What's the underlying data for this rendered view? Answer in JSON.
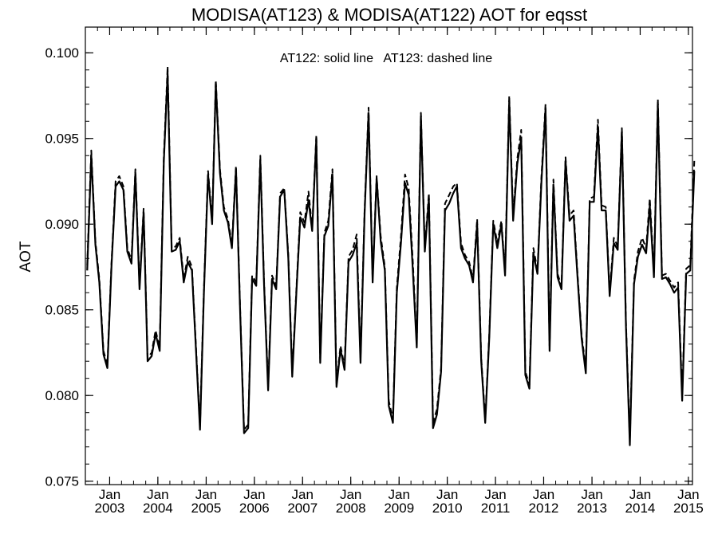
{
  "chart_data": {
    "type": "line",
    "title": "MODISA(AT123) & MODISA(AT122)  AOT for eqsst",
    "xlabel": "",
    "ylabel": "AOT",
    "annotation": "AT122: solid line   AT123: dashed line",
    "ylim": [
      0.0748,
      0.1015
    ],
    "xlim": [
      "2002-07-01",
      "2015-02-01"
    ],
    "yticks": [
      "0.075",
      "0.080",
      "0.085",
      "0.090",
      "0.095",
      "0.100"
    ],
    "xticks": [
      {
        "month": "Jan",
        "year": "2003",
        "date": "2003-01"
      },
      {
        "month": "Jan",
        "year": "2004",
        "date": "2004-01"
      },
      {
        "month": "Jan",
        "year": "2005",
        "date": "2005-01"
      },
      {
        "month": "Jan",
        "year": "2006",
        "date": "2006-01"
      },
      {
        "month": "Jan",
        "year": "2007",
        "date": "2007-01"
      },
      {
        "month": "Jan",
        "year": "2008",
        "date": "2008-01"
      },
      {
        "month": "Jan",
        "year": "2009",
        "date": "2009-01"
      },
      {
        "month": "Jan",
        "year": "2010",
        "date": "2010-01"
      },
      {
        "month": "Jan",
        "year": "2011",
        "date": "2011-01"
      },
      {
        "month": "Jan",
        "year": "2012",
        "date": "2012-01"
      },
      {
        "month": "Jan",
        "year": "2013",
        "date": "2013-01"
      },
      {
        "month": "Jan",
        "year": "2014",
        "date": "2014-01"
      },
      {
        "month": "Jan",
        "year": "2015",
        "date": "2015-01"
      }
    ],
    "grid": false,
    "legend": "none",
    "x_start": "2002-07",
    "series": [
      {
        "name": "AT122",
        "style": "solid",
        "color": "#000000",
        "values": [
          0.0873,
          0.094,
          0.0888,
          0.0866,
          0.0824,
          0.0816,
          0.0876,
          0.0922,
          0.0925,
          0.092,
          0.0884,
          0.0877,
          0.093,
          0.0862,
          0.0907,
          0.082,
          0.0823,
          0.0836,
          0.0826,
          0.0936,
          0.0988,
          0.0884,
          0.0885,
          0.089,
          0.0866,
          0.0878,
          0.0873,
          0.0828,
          0.078,
          0.086,
          0.0929,
          0.09,
          0.0982,
          0.093,
          0.0908,
          0.0901,
          0.0886,
          0.0932,
          0.0849,
          0.0778,
          0.0781,
          0.0868,
          0.0864,
          0.0937,
          0.0866,
          0.0803,
          0.0868,
          0.0862,
          0.0916,
          0.092,
          0.088,
          0.0811,
          0.086,
          0.0904,
          0.0898,
          0.0914,
          0.0896,
          0.095,
          0.0819,
          0.0893,
          0.0899,
          0.0929,
          0.0805,
          0.0827,
          0.0815,
          0.0878,
          0.0882,
          0.0889,
          0.0819,
          0.0906,
          0.0965,
          0.0866,
          0.0927,
          0.089,
          0.0873,
          0.0794,
          0.0784,
          0.086,
          0.0889,
          0.0924,
          0.0917,
          0.0873,
          0.0828,
          0.0963,
          0.0884,
          0.0915,
          0.0781,
          0.0789,
          0.0814,
          0.0908,
          0.0912,
          0.0918,
          0.0922,
          0.0886,
          0.088,
          0.0876,
          0.0866,
          0.09,
          0.082,
          0.0784,
          0.0834,
          0.09,
          0.0886,
          0.09,
          0.087,
          0.0972,
          0.0902,
          0.0935,
          0.095,
          0.0812,
          0.0804,
          0.0883,
          0.0871,
          0.0925,
          0.0967,
          0.0826,
          0.0923,
          0.0869,
          0.0862,
          0.0937,
          0.0902,
          0.0905,
          0.0867,
          0.0833,
          0.0813,
          0.0913,
          0.0913,
          0.0957,
          0.0908,
          0.0908,
          0.0858,
          0.0889,
          0.0885,
          0.0954,
          0.0841,
          0.0771,
          0.0865,
          0.0881,
          0.0888,
          0.0883,
          0.0911,
          0.0869,
          0.097,
          0.0868,
          0.0869,
          0.0865,
          0.086,
          0.0863,
          0.0797,
          0.0871,
          0.0873,
          0.0931
        ]
      },
      {
        "name": "AT123",
        "style": "dashed",
        "color": "#000000",
        "values": [
          0.0876,
          0.0943,
          0.089,
          0.0868,
          0.0826,
          0.0818,
          0.0878,
          0.0925,
          0.0928,
          0.0922,
          0.0886,
          0.0879,
          0.0932,
          0.0864,
          0.0909,
          0.0822,
          0.0825,
          0.0838,
          0.0828,
          0.0939,
          0.0992,
          0.0886,
          0.0887,
          0.0892,
          0.0868,
          0.0881,
          0.0875,
          0.083,
          0.0782,
          0.0862,
          0.0931,
          0.0902,
          0.0984,
          0.0932,
          0.091,
          0.0903,
          0.0888,
          0.0934,
          0.0851,
          0.078,
          0.0783,
          0.087,
          0.0866,
          0.094,
          0.0868,
          0.0805,
          0.087,
          0.0864,
          0.0918,
          0.0921,
          0.0882,
          0.0813,
          0.0862,
          0.0907,
          0.0901,
          0.0919,
          0.0898,
          0.0952,
          0.0821,
          0.0895,
          0.0902,
          0.0932,
          0.0807,
          0.0829,
          0.0817,
          0.0881,
          0.0885,
          0.0894,
          0.0822,
          0.0908,
          0.0968,
          0.0868,
          0.0928,
          0.0893,
          0.0875,
          0.0797,
          0.0786,
          0.0863,
          0.0893,
          0.0929,
          0.0921,
          0.0878,
          0.083,
          0.0965,
          0.0886,
          0.0918,
          0.0784,
          0.0792,
          0.0816,
          0.0912,
          0.0917,
          0.0922,
          0.0924,
          0.0889,
          0.0882,
          0.0878,
          0.0868,
          0.0903,
          0.0822,
          0.0786,
          0.0836,
          0.0902,
          0.0889,
          0.0902,
          0.0872,
          0.0975,
          0.0905,
          0.0938,
          0.0955,
          0.0814,
          0.0806,
          0.0886,
          0.0873,
          0.0928,
          0.097,
          0.0829,
          0.0926,
          0.0871,
          0.0864,
          0.0939,
          0.0905,
          0.0908,
          0.0869,
          0.0835,
          0.0816,
          0.0915,
          0.0916,
          0.0961,
          0.0911,
          0.091,
          0.086,
          0.0892,
          0.0887,
          0.0956,
          0.0843,
          0.0774,
          0.0867,
          0.0884,
          0.0892,
          0.0886,
          0.0915,
          0.0872,
          0.0973,
          0.087,
          0.0871,
          0.0867,
          0.0863,
          0.0866,
          0.0801,
          0.0874,
          0.0876,
          0.0937
        ]
      }
    ]
  }
}
